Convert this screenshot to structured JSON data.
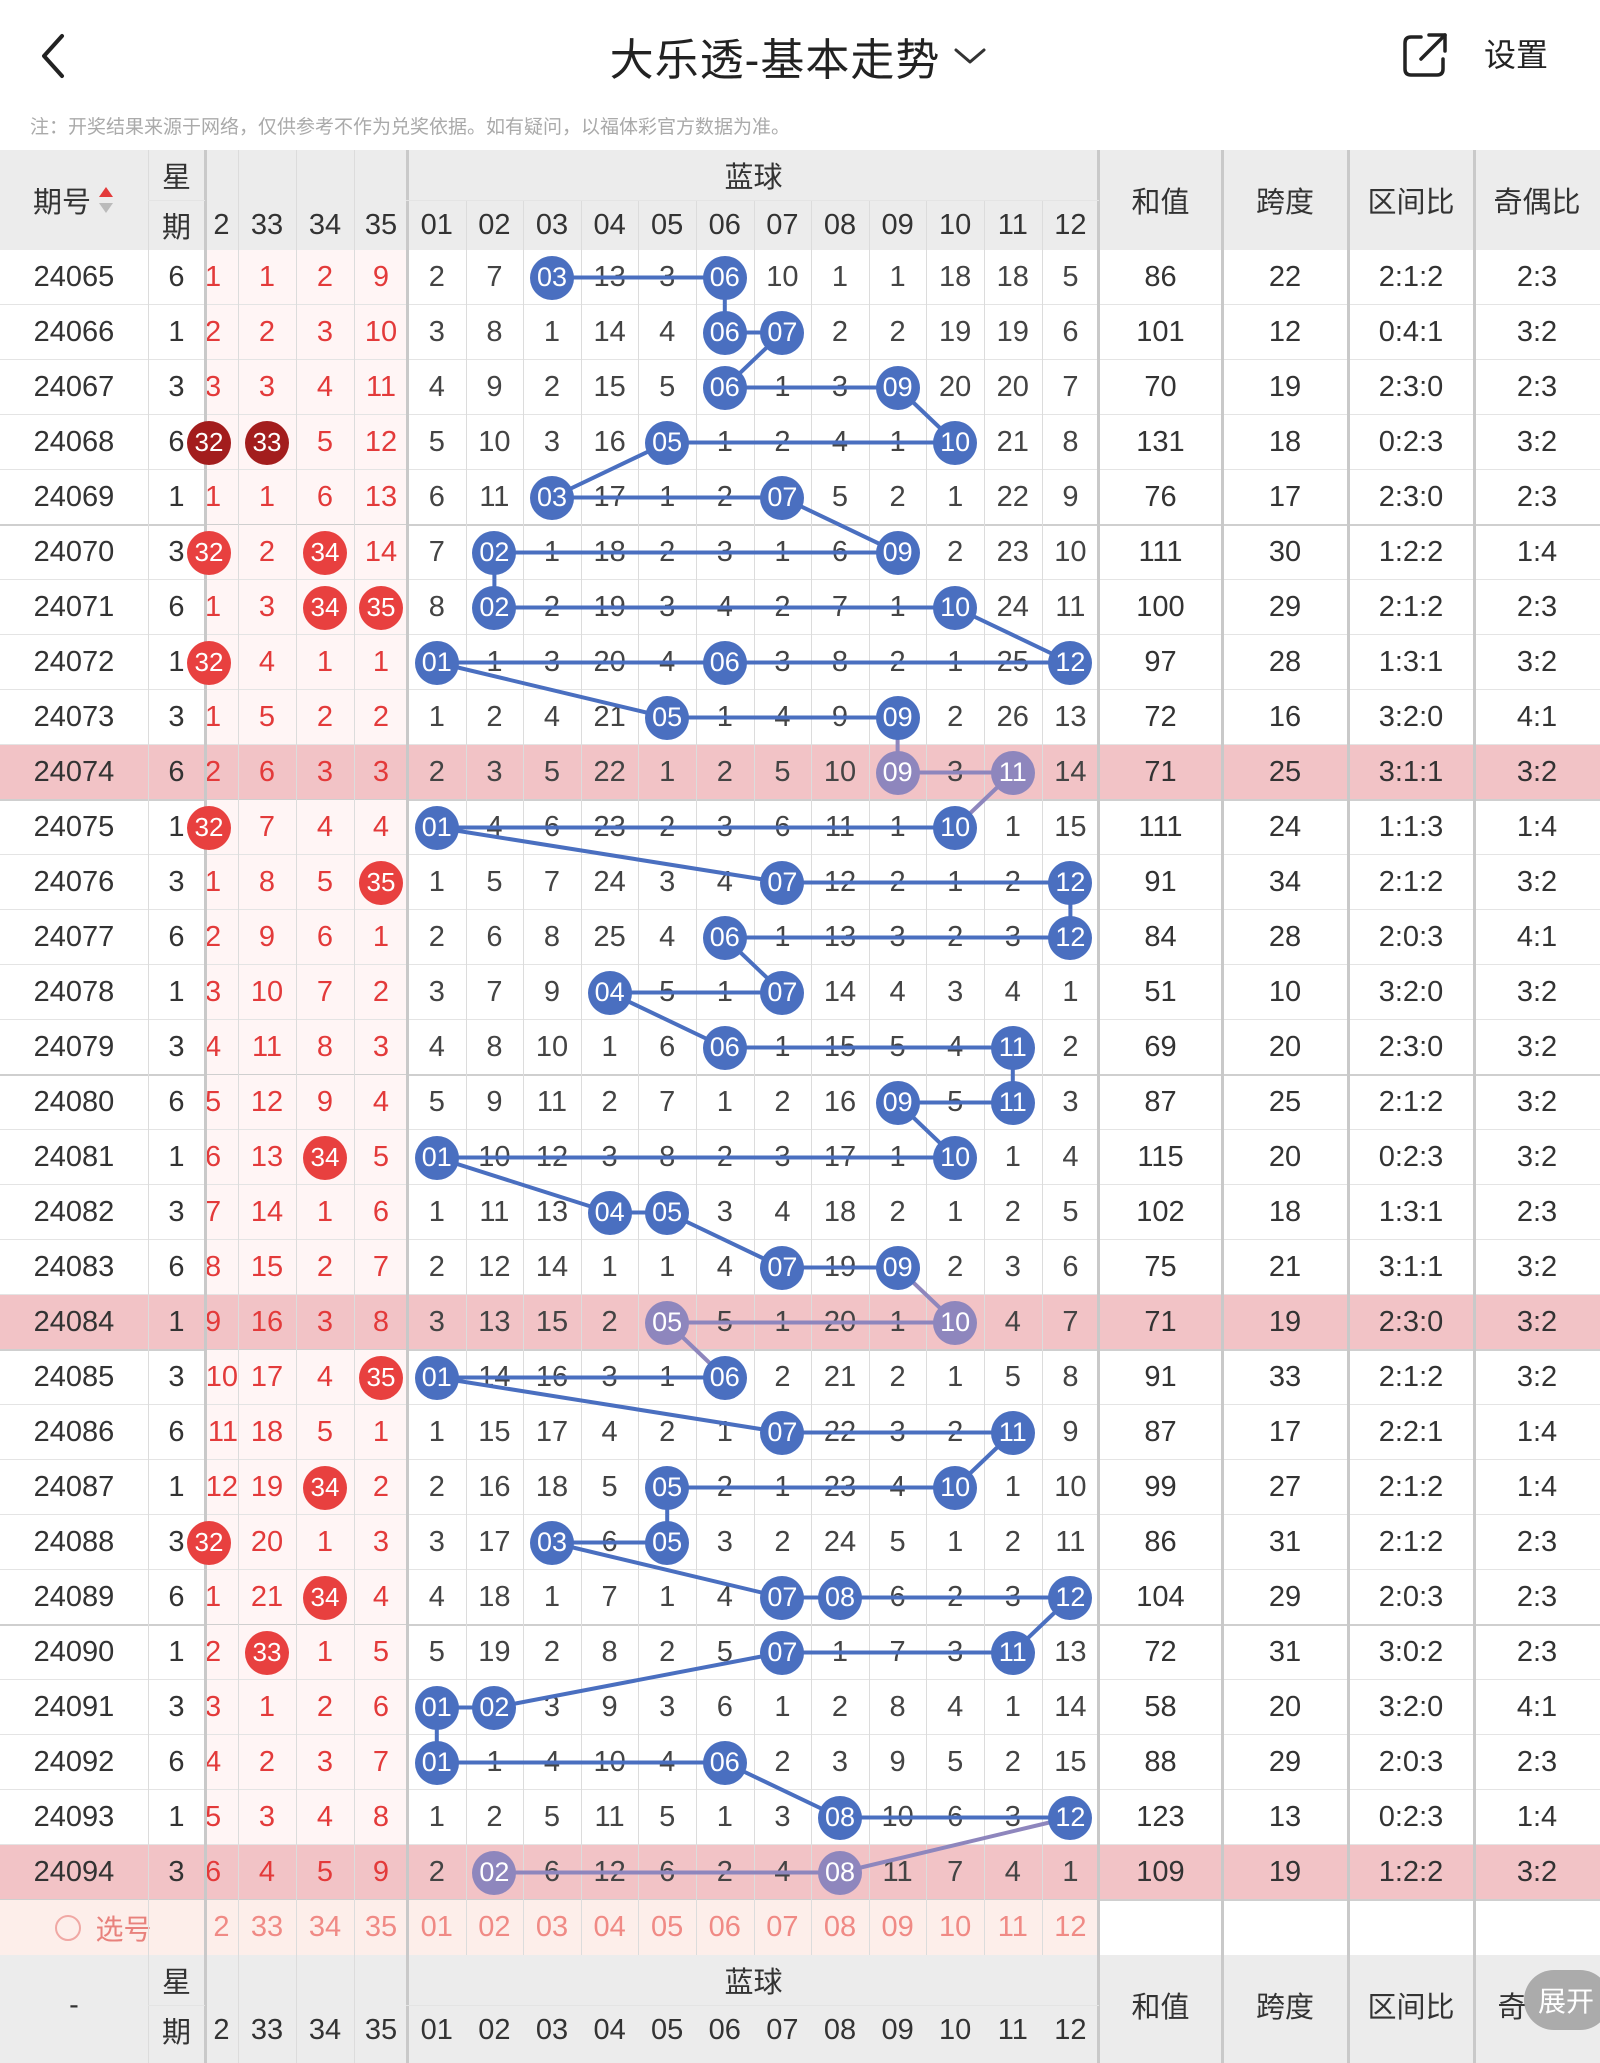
{
  "header": {
    "title": "大乐透-基本走势",
    "settings_label": "设置",
    "disclaimer": "注：开奖结果来源于网络，仅供参考不作为兑奖依据。如有疑问，以福体彩官方数据为准。"
  },
  "table": {
    "col_period": "期号",
    "col_weekday_top": "星",
    "col_weekday_bottom": "期",
    "blue_group": "蓝球",
    "col_sum": "和值",
    "col_span": "跨度",
    "col_zone": "区间比",
    "col_oddeven": "奇偶比",
    "footer_period": "-",
    "footer_oddeven_partial": "奇",
    "red_headers": [
      "2",
      "33",
      "34",
      "35"
    ],
    "blue_headers": [
      "01",
      "02",
      "03",
      "04",
      "05",
      "06",
      "07",
      "08",
      "09",
      "10",
      "11",
      "12"
    ],
    "select_label": "选号",
    "expand_label": "展开",
    "rows": [
      {
        "p": "24065",
        "w": "6",
        "r": [
          "1",
          "1",
          "2",
          "9"
        ],
        "b": [
          "2",
          "7",
          "03",
          "13",
          "3",
          "06",
          "10",
          "1",
          "1",
          "18",
          "18",
          "5"
        ],
        "s": "86",
        "k": "22",
        "z": "2:1:2",
        "o": "2:3"
      },
      {
        "p": "24066",
        "w": "1",
        "r": [
          "2",
          "2",
          "3",
          "10"
        ],
        "b": [
          "3",
          "8",
          "1",
          "14",
          "4",
          "06",
          "07",
          "2",
          "2",
          "19",
          "19",
          "6"
        ],
        "s": "101",
        "k": "12",
        "z": "0:4:1",
        "o": "3:2"
      },
      {
        "p": "24067",
        "w": "3",
        "r": [
          "3",
          "3",
          "4",
          "11"
        ],
        "b": [
          "4",
          "9",
          "2",
          "15",
          "5",
          "06",
          "1",
          "3",
          "09",
          "20",
          "20",
          "7"
        ],
        "s": "70",
        "k": "19",
        "z": "2:3:0",
        "o": "2:3"
      },
      {
        "p": "24068",
        "w": "6",
        "r": [
          "32",
          "33",
          "5",
          "12"
        ],
        "b": [
          "5",
          "10",
          "3",
          "16",
          "05",
          "1",
          "2",
          "4",
          "1",
          "10",
          "21",
          "8"
        ],
        "s": "131",
        "k": "18",
        "z": "0:2:3",
        "o": "3:2"
      },
      {
        "p": "24069",
        "w": "1",
        "r": [
          "1",
          "1",
          "6",
          "13"
        ],
        "b": [
          "6",
          "11",
          "03",
          "17",
          "1",
          "2",
          "07",
          "5",
          "2",
          "1",
          "22",
          "9"
        ],
        "s": "76",
        "k": "17",
        "z": "2:3:0",
        "o": "2:3"
      },
      {
        "p": "24070",
        "w": "3",
        "r": [
          "32",
          "2",
          "34",
          "14"
        ],
        "b": [
          "7",
          "02",
          "1",
          "18",
          "2",
          "3",
          "1",
          "6",
          "09",
          "2",
          "23",
          "10"
        ],
        "s": "111",
        "k": "30",
        "z": "1:2:2",
        "o": "1:4"
      },
      {
        "p": "24071",
        "w": "6",
        "r": [
          "1",
          "3",
          "34",
          "35"
        ],
        "b": [
          "8",
          "02",
          "2",
          "19",
          "3",
          "4",
          "2",
          "7",
          "1",
          "10",
          "24",
          "11"
        ],
        "s": "100",
        "k": "29",
        "z": "2:1:2",
        "o": "2:3"
      },
      {
        "p": "24072",
        "w": "1",
        "r": [
          "32",
          "4",
          "1",
          "1"
        ],
        "b": [
          "01",
          "1",
          "3",
          "20",
          "4",
          "06",
          "3",
          "8",
          "2",
          "1",
          "25",
          "12"
        ],
        "s": "97",
        "k": "28",
        "z": "1:3:1",
        "o": "3:2"
      },
      {
        "p": "24073",
        "w": "3",
        "r": [
          "1",
          "5",
          "2",
          "2"
        ],
        "b": [
          "1",
          "2",
          "4",
          "21",
          "05",
          "1",
          "4",
          "9",
          "09",
          "2",
          "26",
          "13"
        ],
        "s": "72",
        "k": "16",
        "z": "3:2:0",
        "o": "4:1"
      },
      {
        "p": "24074",
        "w": "6",
        "r": [
          "2",
          "6",
          "3",
          "3"
        ],
        "b": [
          "2",
          "3",
          "5",
          "22",
          "1",
          "2",
          "5",
          "10",
          "09",
          "3",
          "11",
          "14"
        ],
        "s": "71",
        "k": "25",
        "z": "3:1:1",
        "o": "3:2",
        "hl": true
      },
      {
        "p": "24075",
        "w": "1",
        "r": [
          "32",
          "7",
          "4",
          "4"
        ],
        "b": [
          "01",
          "4",
          "6",
          "23",
          "2",
          "3",
          "6",
          "11",
          "1",
          "10",
          "1",
          "15"
        ],
        "s": "111",
        "k": "24",
        "z": "1:1:3",
        "o": "1:4"
      },
      {
        "p": "24076",
        "w": "3",
        "r": [
          "1",
          "8",
          "5",
          "35"
        ],
        "b": [
          "1",
          "5",
          "7",
          "24",
          "3",
          "4",
          "07",
          "12",
          "2",
          "1",
          "2",
          "12"
        ],
        "s": "91",
        "k": "34",
        "z": "2:1:2",
        "o": "3:2"
      },
      {
        "p": "24077",
        "w": "6",
        "r": [
          "2",
          "9",
          "6",
          "1"
        ],
        "b": [
          "2",
          "6",
          "8",
          "25",
          "4",
          "06",
          "1",
          "13",
          "3",
          "2",
          "3",
          "12"
        ],
        "s": "84",
        "k": "28",
        "z": "2:0:3",
        "o": "4:1"
      },
      {
        "p": "24078",
        "w": "1",
        "r": [
          "3",
          "10",
          "7",
          "2"
        ],
        "b": [
          "3",
          "7",
          "9",
          "04",
          "5",
          "1",
          "07",
          "14",
          "4",
          "3",
          "4",
          "1"
        ],
        "s": "51",
        "k": "10",
        "z": "3:2:0",
        "o": "3:2"
      },
      {
        "p": "24079",
        "w": "3",
        "r": [
          "4",
          "11",
          "8",
          "3"
        ],
        "b": [
          "4",
          "8",
          "10",
          "1",
          "6",
          "06",
          "1",
          "15",
          "5",
          "4",
          "11",
          "2"
        ],
        "s": "69",
        "k": "20",
        "z": "2:3:0",
        "o": "3:2"
      },
      {
        "p": "24080",
        "w": "6",
        "r": [
          "5",
          "12",
          "9",
          "4"
        ],
        "b": [
          "5",
          "9",
          "11",
          "2",
          "7",
          "1",
          "2",
          "16",
          "09",
          "5",
          "11",
          "3"
        ],
        "s": "87",
        "k": "25",
        "z": "2:1:2",
        "o": "3:2"
      },
      {
        "p": "24081",
        "w": "1",
        "r": [
          "6",
          "13",
          "34",
          "5"
        ],
        "b": [
          "01",
          "10",
          "12",
          "3",
          "8",
          "2",
          "3",
          "17",
          "1",
          "10",
          "1",
          "4"
        ],
        "s": "115",
        "k": "20",
        "z": "0:2:3",
        "o": "3:2"
      },
      {
        "p": "24082",
        "w": "3",
        "r": [
          "7",
          "14",
          "1",
          "6"
        ],
        "b": [
          "1",
          "11",
          "13",
          "04",
          "05",
          "3",
          "4",
          "18",
          "2",
          "1",
          "2",
          "5"
        ],
        "s": "102",
        "k": "18",
        "z": "1:3:1",
        "o": "2:3"
      },
      {
        "p": "24083",
        "w": "6",
        "r": [
          "8",
          "15",
          "2",
          "7"
        ],
        "b": [
          "2",
          "12",
          "14",
          "1",
          "1",
          "4",
          "07",
          "19",
          "09",
          "2",
          "3",
          "6"
        ],
        "s": "75",
        "k": "21",
        "z": "3:1:1",
        "o": "3:2"
      },
      {
        "p": "24084",
        "w": "1",
        "r": [
          "9",
          "16",
          "3",
          "8"
        ],
        "b": [
          "3",
          "13",
          "15",
          "2",
          "05",
          "5",
          "1",
          "20",
          "1",
          "10",
          "4",
          "7"
        ],
        "s": "71",
        "k": "19",
        "z": "2:3:0",
        "o": "3:2",
        "hl": true
      },
      {
        "p": "24085",
        "w": "3",
        "r": [
          "10",
          "17",
          "4",
          "35"
        ],
        "b": [
          "01",
          "14",
          "16",
          "3",
          "1",
          "06",
          "2",
          "21",
          "2",
          "1",
          "5",
          "8"
        ],
        "s": "91",
        "k": "33",
        "z": "2:1:2",
        "o": "3:2"
      },
      {
        "p": "24086",
        "w": "6",
        "r": [
          "11",
          "18",
          "5",
          "1"
        ],
        "b": [
          "1",
          "15",
          "17",
          "4",
          "2",
          "1",
          "07",
          "22",
          "3",
          "2",
          "11",
          "9"
        ],
        "s": "87",
        "k": "17",
        "z": "2:2:1",
        "o": "1:4"
      },
      {
        "p": "24087",
        "w": "1",
        "r": [
          "12",
          "19",
          "34",
          "2"
        ],
        "b": [
          "2",
          "16",
          "18",
          "5",
          "05",
          "2",
          "1",
          "23",
          "4",
          "10",
          "1",
          "10"
        ],
        "s": "99",
        "k": "27",
        "z": "2:1:2",
        "o": "1:4"
      },
      {
        "p": "24088",
        "w": "3",
        "r": [
          "32",
          "20",
          "1",
          "3"
        ],
        "b": [
          "3",
          "17",
          "03",
          "6",
          "05",
          "3",
          "2",
          "24",
          "5",
          "1",
          "2",
          "11"
        ],
        "s": "86",
        "k": "31",
        "z": "2:1:2",
        "o": "2:3"
      },
      {
        "p": "24089",
        "w": "6",
        "r": [
          "1",
          "21",
          "34",
          "4"
        ],
        "b": [
          "4",
          "18",
          "1",
          "7",
          "1",
          "4",
          "07",
          "08",
          "6",
          "2",
          "3",
          "12"
        ],
        "s": "104",
        "k": "29",
        "z": "2:0:3",
        "o": "2:3"
      },
      {
        "p": "24090",
        "w": "1",
        "r": [
          "2",
          "33",
          "1",
          "5"
        ],
        "b": [
          "5",
          "19",
          "2",
          "8",
          "2",
          "5",
          "07",
          "1",
          "7",
          "3",
          "11",
          "13"
        ],
        "s": "72",
        "k": "31",
        "z": "3:0:2",
        "o": "2:3"
      },
      {
        "p": "24091",
        "w": "3",
        "r": [
          "3",
          "1",
          "2",
          "6"
        ],
        "b": [
          "01",
          "02",
          "3",
          "9",
          "3",
          "6",
          "1",
          "2",
          "8",
          "4",
          "1",
          "14"
        ],
        "s": "58",
        "k": "20",
        "z": "3:2:0",
        "o": "4:1"
      },
      {
        "p": "24092",
        "w": "6",
        "r": [
          "4",
          "2",
          "3",
          "7"
        ],
        "b": [
          "01",
          "1",
          "4",
          "10",
          "4",
          "06",
          "2",
          "3",
          "9",
          "5",
          "2",
          "15"
        ],
        "s": "88",
        "k": "29",
        "z": "2:0:3",
        "o": "2:3"
      },
      {
        "p": "24093",
        "w": "1",
        "r": [
          "5",
          "3",
          "4",
          "8"
        ],
        "b": [
          "1",
          "2",
          "5",
          "11",
          "5",
          "1",
          "3",
          "08",
          "10",
          "6",
          "3",
          "12"
        ],
        "s": "123",
        "k": "13",
        "z": "0:2:3",
        "o": "1:4"
      },
      {
        "p": "24094",
        "w": "3",
        "r": [
          "6",
          "4",
          "5",
          "9"
        ],
        "b": [
          "2",
          "02",
          "6",
          "12",
          "6",
          "2",
          "4",
          "08",
          "11",
          "7",
          "4",
          "1"
        ],
        "s": "109",
        "k": "19",
        "z": "1:2:2",
        "o": "3:2",
        "hl": true
      }
    ]
  },
  "colors": {
    "blue_ball": "#4a6fc0",
    "blue_ball_faded": "#8e86bd",
    "red_ball": "#e8403f",
    "dark_red_ball": "#a31d1d",
    "red_text": "#e33a3a",
    "highlight_row": "#f2c3c6",
    "select_row": "#fdeeea",
    "header_bg": "#ececec"
  },
  "icons": {
    "back": "chevron-left-icon",
    "dropdown": "chevron-down-icon",
    "share": "external-link-icon",
    "sort": "sort-icon",
    "radio": "radio-circle-icon"
  }
}
